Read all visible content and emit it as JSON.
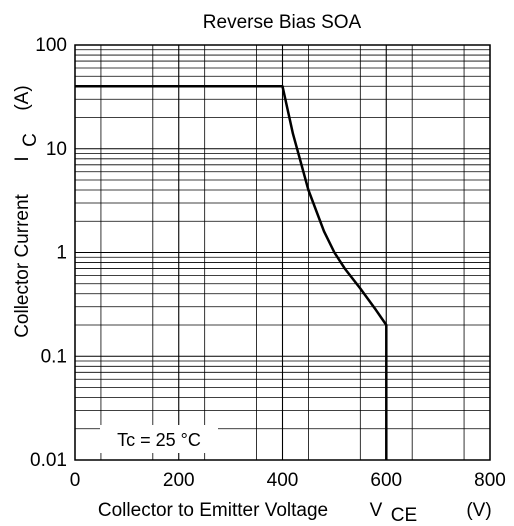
{
  "chart_data": {
    "type": "line",
    "title": "Reverse Bias SOA",
    "xlabel": "Collector to Emitter Voltage",
    "xlabel_symbol": "V",
    "xlabel_symbol_sub": "CE",
    "xlabel_unit": "(V)",
    "ylabel": "Collector Current",
    "ylabel_symbol": "I",
    "ylabel_symbol_sub": "C",
    "ylabel_unit": "(A)",
    "xlim": [
      0,
      800
    ],
    "ylim": [
      0.01,
      100
    ],
    "yscale": "log",
    "grid": true,
    "x_ticks": [
      0,
      200,
      400,
      600,
      800
    ],
    "x_tick_labels": [
      "0",
      "200",
      "400",
      "600",
      "800"
    ],
    "y_ticks": [
      0.01,
      0.1,
      1,
      10,
      100
    ],
    "y_tick_labels": [
      "0.01",
      "0.1",
      "1",
      "10",
      "100"
    ],
    "annotation": "Tc = 25 °C",
    "series": [
      {
        "x": [
          0,
          400,
          420,
          450,
          480,
          500,
          520,
          550,
          580,
          600,
          600
        ],
        "y": [
          40,
          40,
          14,
          4,
          1.6,
          1.0,
          0.7,
          0.45,
          0.28,
          0.2,
          0.01
        ]
      }
    ]
  }
}
